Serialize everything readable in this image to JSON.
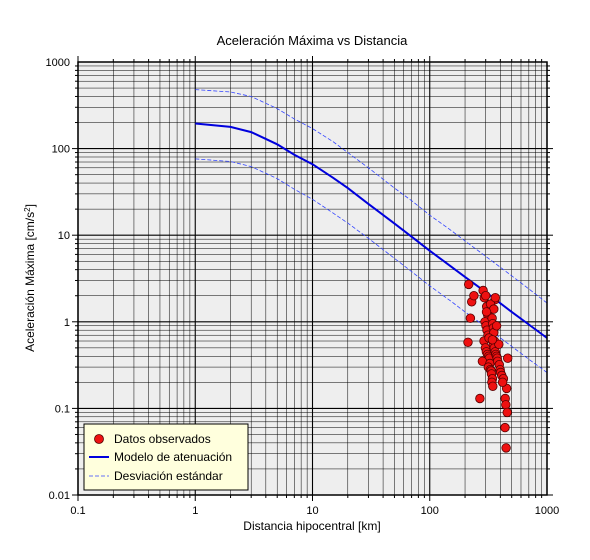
{
  "chart_data": {
    "type": "scatter",
    "title": "Aceleración Máxima vs Distancia",
    "xlabel": "Distancia hipocentral [km]",
    "ylabel_main": "Aceleración Máxima [cm/s",
    "ylabel_sup": "2",
    "ylabel_end": "]",
    "x_scale": "log",
    "y_scale": "log",
    "xlim": [
      0.1,
      1000
    ],
    "ylim": [
      0.01,
      1000
    ],
    "x_ticks": [
      "0.1",
      "1",
      "10",
      "100",
      "1000"
    ],
    "y_ticks": [
      "0.01",
      "0.1",
      "1",
      "10",
      "100",
      "1000"
    ],
    "grid": true,
    "legend_position": "bottom-left",
    "colors": {
      "model": "#0000dd",
      "deviation": "#3344ff",
      "points": "#ee1111",
      "plot_bg": "#eeeeee",
      "legend_bg": "#ffffdd"
    },
    "series": [
      {
        "name": "Datos observados",
        "style": "markers",
        "points": [
          [
            215,
            2.7
          ],
          [
            228,
            1.7
          ],
          [
            238,
            2.0
          ],
          [
            222,
            1.1
          ],
          [
            212,
            0.58
          ],
          [
            268,
            0.13
          ],
          [
            285,
            2.3
          ],
          [
            292,
            1.9
          ],
          [
            300,
            2.0
          ],
          [
            306,
            1.5
          ],
          [
            312,
            1.2
          ],
          [
            296,
            1.0
          ],
          [
            302,
            0.9
          ],
          [
            308,
            0.8
          ],
          [
            314,
            0.7
          ],
          [
            290,
            0.6
          ],
          [
            298,
            0.5
          ],
          [
            304,
            0.45
          ],
          [
            311,
            0.42
          ],
          [
            318,
            0.4
          ],
          [
            322,
            0.38
          ],
          [
            281,
            0.35
          ],
          [
            326,
            0.33
          ],
          [
            316,
            0.3
          ],
          [
            329,
            0.28
          ],
          [
            334,
            0.27
          ],
          [
            336,
            0.25
          ],
          [
            342,
            0.22
          ],
          [
            339,
            0.2
          ],
          [
            345,
            0.18
          ],
          [
            340,
            1.1
          ],
          [
            344,
            0.95
          ],
          [
            349,
            0.85
          ],
          [
            352,
            0.75
          ],
          [
            356,
            0.6
          ],
          [
            348,
            0.55
          ],
          [
            355,
            0.5
          ],
          [
            362,
            0.45
          ],
          [
            366,
            0.42
          ],
          [
            372,
            0.4
          ],
          [
            376,
            0.38
          ],
          [
            380,
            0.35
          ],
          [
            360,
            1.8
          ],
          [
            330,
            1.6
          ],
          [
            352,
            1.4
          ],
          [
            372,
            0.9
          ],
          [
            392,
            0.32
          ],
          [
            398,
            0.28
          ],
          [
            402,
            0.26
          ],
          [
            412,
            0.24
          ],
          [
            425,
            0.22
          ],
          [
            452,
            0.17
          ],
          [
            440,
            0.13
          ],
          [
            445,
            0.11
          ],
          [
            458,
            0.09
          ],
          [
            438,
            0.06
          ],
          [
            448,
            0.035
          ],
          [
            462,
            0.38
          ],
          [
            418,
            0.2
          ],
          [
            388,
            0.55
          ],
          [
            320,
            0.65
          ],
          [
            342,
            0.62
          ],
          [
            305,
            1.3
          ],
          [
            362,
            1.9
          ]
        ]
      },
      {
        "name": "Modelo de atenuación",
        "style": "line",
        "points": [
          [
            1,
            195
          ],
          [
            2,
            178
          ],
          [
            3,
            155
          ],
          [
            5,
            112
          ],
          [
            7,
            85
          ],
          [
            10,
            66
          ],
          [
            15,
            46
          ],
          [
            20,
            35
          ],
          [
            30,
            23
          ],
          [
            50,
            13.6
          ],
          [
            70,
            9.6
          ],
          [
            100,
            6.6
          ],
          [
            150,
            4.4
          ],
          [
            200,
            3.3
          ],
          [
            300,
            2.2
          ],
          [
            500,
            1.3
          ],
          [
            700,
            0.93
          ],
          [
            1000,
            0.65
          ]
        ]
      },
      {
        "name": "Desviación estándar",
        "style": "dashed",
        "points": [
          [
            1,
            480
          ],
          [
            2,
            450
          ],
          [
            3,
            400
          ],
          [
            5,
            290
          ],
          [
            7,
            220
          ],
          [
            10,
            170
          ],
          [
            15,
            120
          ],
          [
            20,
            90
          ],
          [
            30,
            60
          ],
          [
            50,
            35
          ],
          [
            70,
            25
          ],
          [
            100,
            17
          ],
          [
            150,
            11.5
          ],
          [
            200,
            8.6
          ],
          [
            300,
            5.7
          ],
          [
            500,
            3.4
          ],
          [
            700,
            2.4
          ],
          [
            1000,
            1.65
          ]
        ]
      },
      {
        "name": "",
        "style": "dashed",
        "points": [
          [
            1,
            76
          ],
          [
            2,
            71
          ],
          [
            3,
            62
          ],
          [
            5,
            45
          ],
          [
            7,
            34
          ],
          [
            10,
            26
          ],
          [
            15,
            18
          ],
          [
            20,
            13.8
          ],
          [
            30,
            9.2
          ],
          [
            50,
            5.4
          ],
          [
            70,
            3.8
          ],
          [
            100,
            2.6
          ],
          [
            150,
            1.75
          ],
          [
            200,
            1.3
          ],
          [
            300,
            0.87
          ],
          [
            500,
            0.52
          ],
          [
            700,
            0.37
          ],
          [
            1000,
            0.26
          ]
        ]
      }
    ]
  }
}
